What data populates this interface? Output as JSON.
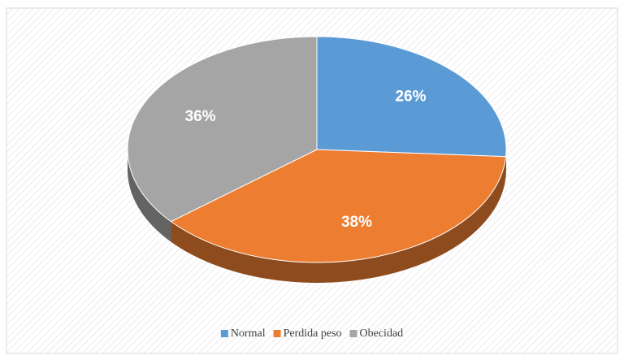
{
  "chart_data": {
    "type": "pie",
    "categories": [
      "Normal",
      "Perdida peso",
      "Obecidad"
    ],
    "values": [
      26,
      38,
      36
    ],
    "value_labels": [
      "26%",
      "38%",
      "36%"
    ],
    "colors": [
      "#5b9bd5",
      "#ed7d31",
      "#a5a5a5"
    ],
    "legend": "bottom"
  }
}
